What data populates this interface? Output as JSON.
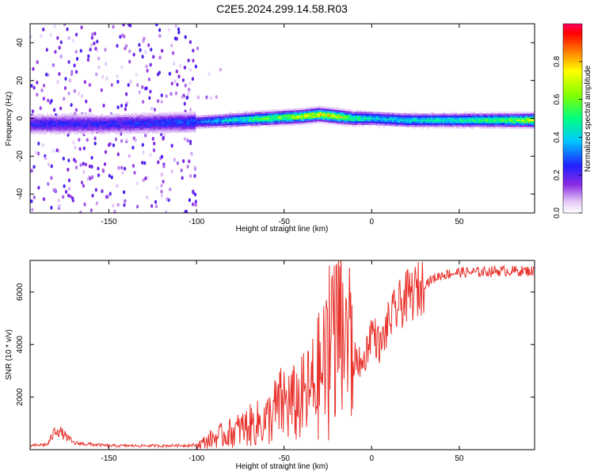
{
  "title": "C2E5.2024.299.14.58.R03",
  "chart_data": [
    {
      "type": "heatmap",
      "xlabel": "Height of straight line (km)",
      "ylabel": "Frequency (Hz)",
      "xlim": [
        -195,
        93
      ],
      "ylim": [
        -50,
        50
      ],
      "xticks": [
        -150,
        -100,
        -50,
        0,
        50
      ],
      "yticks": [
        -40,
        -20,
        0,
        20,
        40
      ],
      "colorbar": {
        "label": "Normalized spectral amplitude",
        "range": [
          0,
          1
        ],
        "ticks": [
          0.0,
          0.2,
          0.4,
          0.6,
          0.8
        ],
        "tick_labels": [
          "0.0",
          "0.2",
          "0.4",
          "0.6",
          "0.8"
        ]
      },
      "ridge": {
        "description_values": "center frequency of dominant signal vs height",
        "x": [
          -195,
          -150,
          -100,
          -80,
          -60,
          -40,
          -30,
          -20,
          -10,
          0,
          20,
          50,
          80,
          93
        ],
        "frequency": [
          -3,
          -3,
          -2,
          -1,
          0,
          1,
          2,
          1,
          0,
          0,
          -1,
          -1,
          -1,
          -1
        ],
        "amplitude": [
          0.25,
          0.25,
          0.3,
          0.45,
          0.6,
          0.7,
          0.75,
          0.8,
          0.55,
          0.45,
          0.45,
          0.5,
          0.6,
          0.75
        ]
      },
      "noise_region_end_x": -100
    },
    {
      "type": "line",
      "xlabel": "Height of straight line (km)",
      "ylabel": "SNR (10 * v/v)",
      "xlim": [
        -195,
        93
      ],
      "ylim": [
        0,
        7200
      ],
      "xticks": [
        -150,
        -100,
        -50,
        0,
        50
      ],
      "yticks": [
        2000,
        4000,
        6000
      ],
      "series": [
        {
          "color": "#e8322c",
          "x": [
            -195,
            -185,
            -180,
            -170,
            -150,
            -120,
            -100,
            -95,
            -90,
            -80,
            -70,
            -60,
            -55,
            -50,
            -45,
            -40,
            -35,
            -30,
            -25,
            -22,
            -20,
            -18,
            -15,
            -10,
            -5,
            0,
            5,
            10,
            15,
            20,
            25,
            30,
            35,
            40,
            50,
            60,
            70,
            80,
            93
          ],
          "y": [
            150,
            200,
            800,
            250,
            150,
            150,
            170,
            300,
            450,
            650,
            900,
            1100,
            1500,
            1800,
            1700,
            1900,
            2200,
            2800,
            3300,
            3900,
            4100,
            4600,
            4500,
            3500,
            3200,
            4600,
            3900,
            4900,
            5400,
            5800,
            6000,
            6300,
            6500,
            6650,
            6750,
            6750,
            6800,
            6800,
            6800
          ]
        }
      ]
    }
  ]
}
